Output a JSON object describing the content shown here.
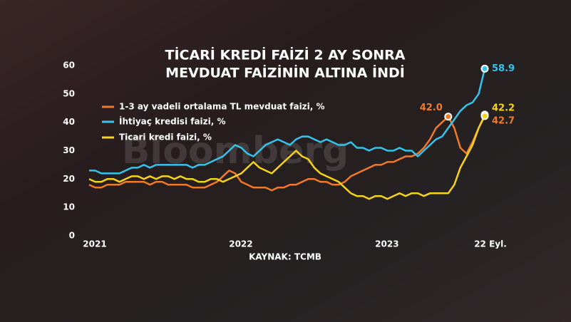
{
  "chart_data": {
    "type": "line",
    "title": [
      "TİCARİ KREDİ FAİZİ 2 AY SONRA",
      "MEVDUAT FAİZİNİN ALTINA İNDİ"
    ],
    "source": "KAYNAK: TCMB",
    "watermark": "Bloomberg",
    "categories": [
      "2021",
      null,
      null,
      null,
      null,
      null,
      null,
      null,
      null,
      null,
      null,
      null,
      null,
      null,
      null,
      null,
      null,
      null,
      null,
      null,
      null,
      null,
      null,
      null,
      "2022",
      null,
      null,
      null,
      null,
      null,
      null,
      null,
      null,
      null,
      null,
      null,
      null,
      null,
      null,
      null,
      null,
      null,
      null,
      null,
      null,
      null,
      null,
      null,
      "2023",
      null,
      null,
      null,
      null,
      null,
      null,
      null,
      null,
      null,
      null,
      null,
      null,
      null,
      null,
      null,
      null,
      "22 Eyl."
    ],
    "ylim": [
      0,
      60
    ],
    "yticks": [
      0,
      10,
      20,
      30,
      40,
      50,
      60
    ],
    "series": [
      {
        "name": "1-3 ay vadeli ortalama TL mevduat faizi, %",
        "color": "#f07a2a",
        "values": [
          18,
          17,
          17,
          18,
          18,
          18,
          19,
          19,
          19,
          19,
          18,
          19,
          19,
          18,
          18,
          18,
          18,
          17,
          17,
          17,
          18,
          19,
          21,
          23,
          22,
          19,
          18,
          17,
          17,
          17,
          16,
          17,
          17,
          18,
          18,
          19,
          20,
          20,
          19,
          19,
          18,
          18,
          19,
          21,
          22,
          23,
          24,
          25,
          25,
          26,
          26,
          27,
          28,
          28,
          29,
          31,
          34,
          38,
          40,
          42.0,
          38,
          31,
          29,
          33,
          38,
          42.7
        ],
        "value_labels": [
          null,
          null,
          null,
          null,
          null,
          null,
          null,
          null,
          null,
          null,
          null,
          null,
          null,
          null,
          null,
          null,
          null,
          null,
          null,
          null,
          null,
          null,
          null,
          null,
          null,
          null,
          null,
          null,
          null,
          null,
          null,
          null,
          null,
          null,
          null,
          null,
          null,
          null,
          null,
          null,
          null,
          null,
          null,
          null,
          null,
          null,
          null,
          null,
          null,
          null,
          null,
          null,
          null,
          null,
          null,
          null,
          null,
          null,
          null,
          "42.0",
          null,
          null,
          null,
          null,
          null,
          "42.7"
        ]
      },
      {
        "name": "İhtiyaç kredisi faizi, %",
        "color": "#36c3ec",
        "values": [
          23,
          23,
          22,
          22,
          22,
          22,
          23,
          24,
          24,
          25,
          24,
          25,
          25,
          25,
          25,
          25,
          25,
          24,
          25,
          25,
          26,
          27,
          28,
          30,
          32,
          31,
          29,
          28,
          30,
          32,
          33,
          34,
          33,
          32,
          34,
          35,
          35,
          34,
          33,
          34,
          33,
          32,
          32,
          33,
          31,
          31,
          30,
          31,
          31,
          30,
          30,
          31,
          30,
          30,
          28,
          30,
          32,
          34,
          35,
          38,
          41,
          44,
          46,
          47,
          50,
          58.9
        ],
        "value_labels": [
          null,
          null,
          null,
          null,
          null,
          null,
          null,
          null,
          null,
          null,
          null,
          null,
          null,
          null,
          null,
          null,
          null,
          null,
          null,
          null,
          null,
          null,
          null,
          null,
          null,
          null,
          null,
          null,
          null,
          null,
          null,
          null,
          null,
          null,
          null,
          null,
          null,
          null,
          null,
          null,
          null,
          null,
          null,
          null,
          null,
          null,
          null,
          null,
          null,
          null,
          null,
          null,
          null,
          null,
          null,
          null,
          null,
          null,
          null,
          null,
          null,
          null,
          null,
          null,
          null,
          "58.9"
        ]
      },
      {
        "name": "Ticari kredi faizi, %",
        "color": "#f5d21c",
        "values": [
          20,
          19,
          19,
          20,
          20,
          19,
          20,
          21,
          21,
          20,
          21,
          20,
          21,
          21,
          20,
          21,
          20,
          20,
          19,
          19,
          20,
          20,
          19,
          20,
          21,
          22,
          24,
          26,
          24,
          23,
          22,
          24,
          26,
          28,
          30,
          28,
          27,
          24,
          22,
          21,
          20,
          19,
          17,
          15,
          14,
          14,
          13,
          14,
          14,
          13,
          14,
          15,
          14,
          15,
          15,
          14,
          15,
          15,
          15,
          15,
          18,
          24,
          28,
          32,
          38,
          42.2
        ],
        "value_labels": [
          null,
          null,
          null,
          null,
          null,
          null,
          null,
          null,
          null,
          null,
          null,
          null,
          null,
          null,
          null,
          null,
          null,
          null,
          null,
          null,
          null,
          null,
          null,
          null,
          null,
          null,
          null,
          null,
          null,
          null,
          null,
          null,
          null,
          null,
          null,
          null,
          null,
          null,
          null,
          null,
          null,
          null,
          null,
          null,
          null,
          null,
          null,
          null,
          null,
          null,
          null,
          null,
          null,
          null,
          null,
          null,
          null,
          null,
          null,
          null,
          null,
          null,
          null,
          null,
          null,
          "42.2"
        ]
      }
    ]
  }
}
